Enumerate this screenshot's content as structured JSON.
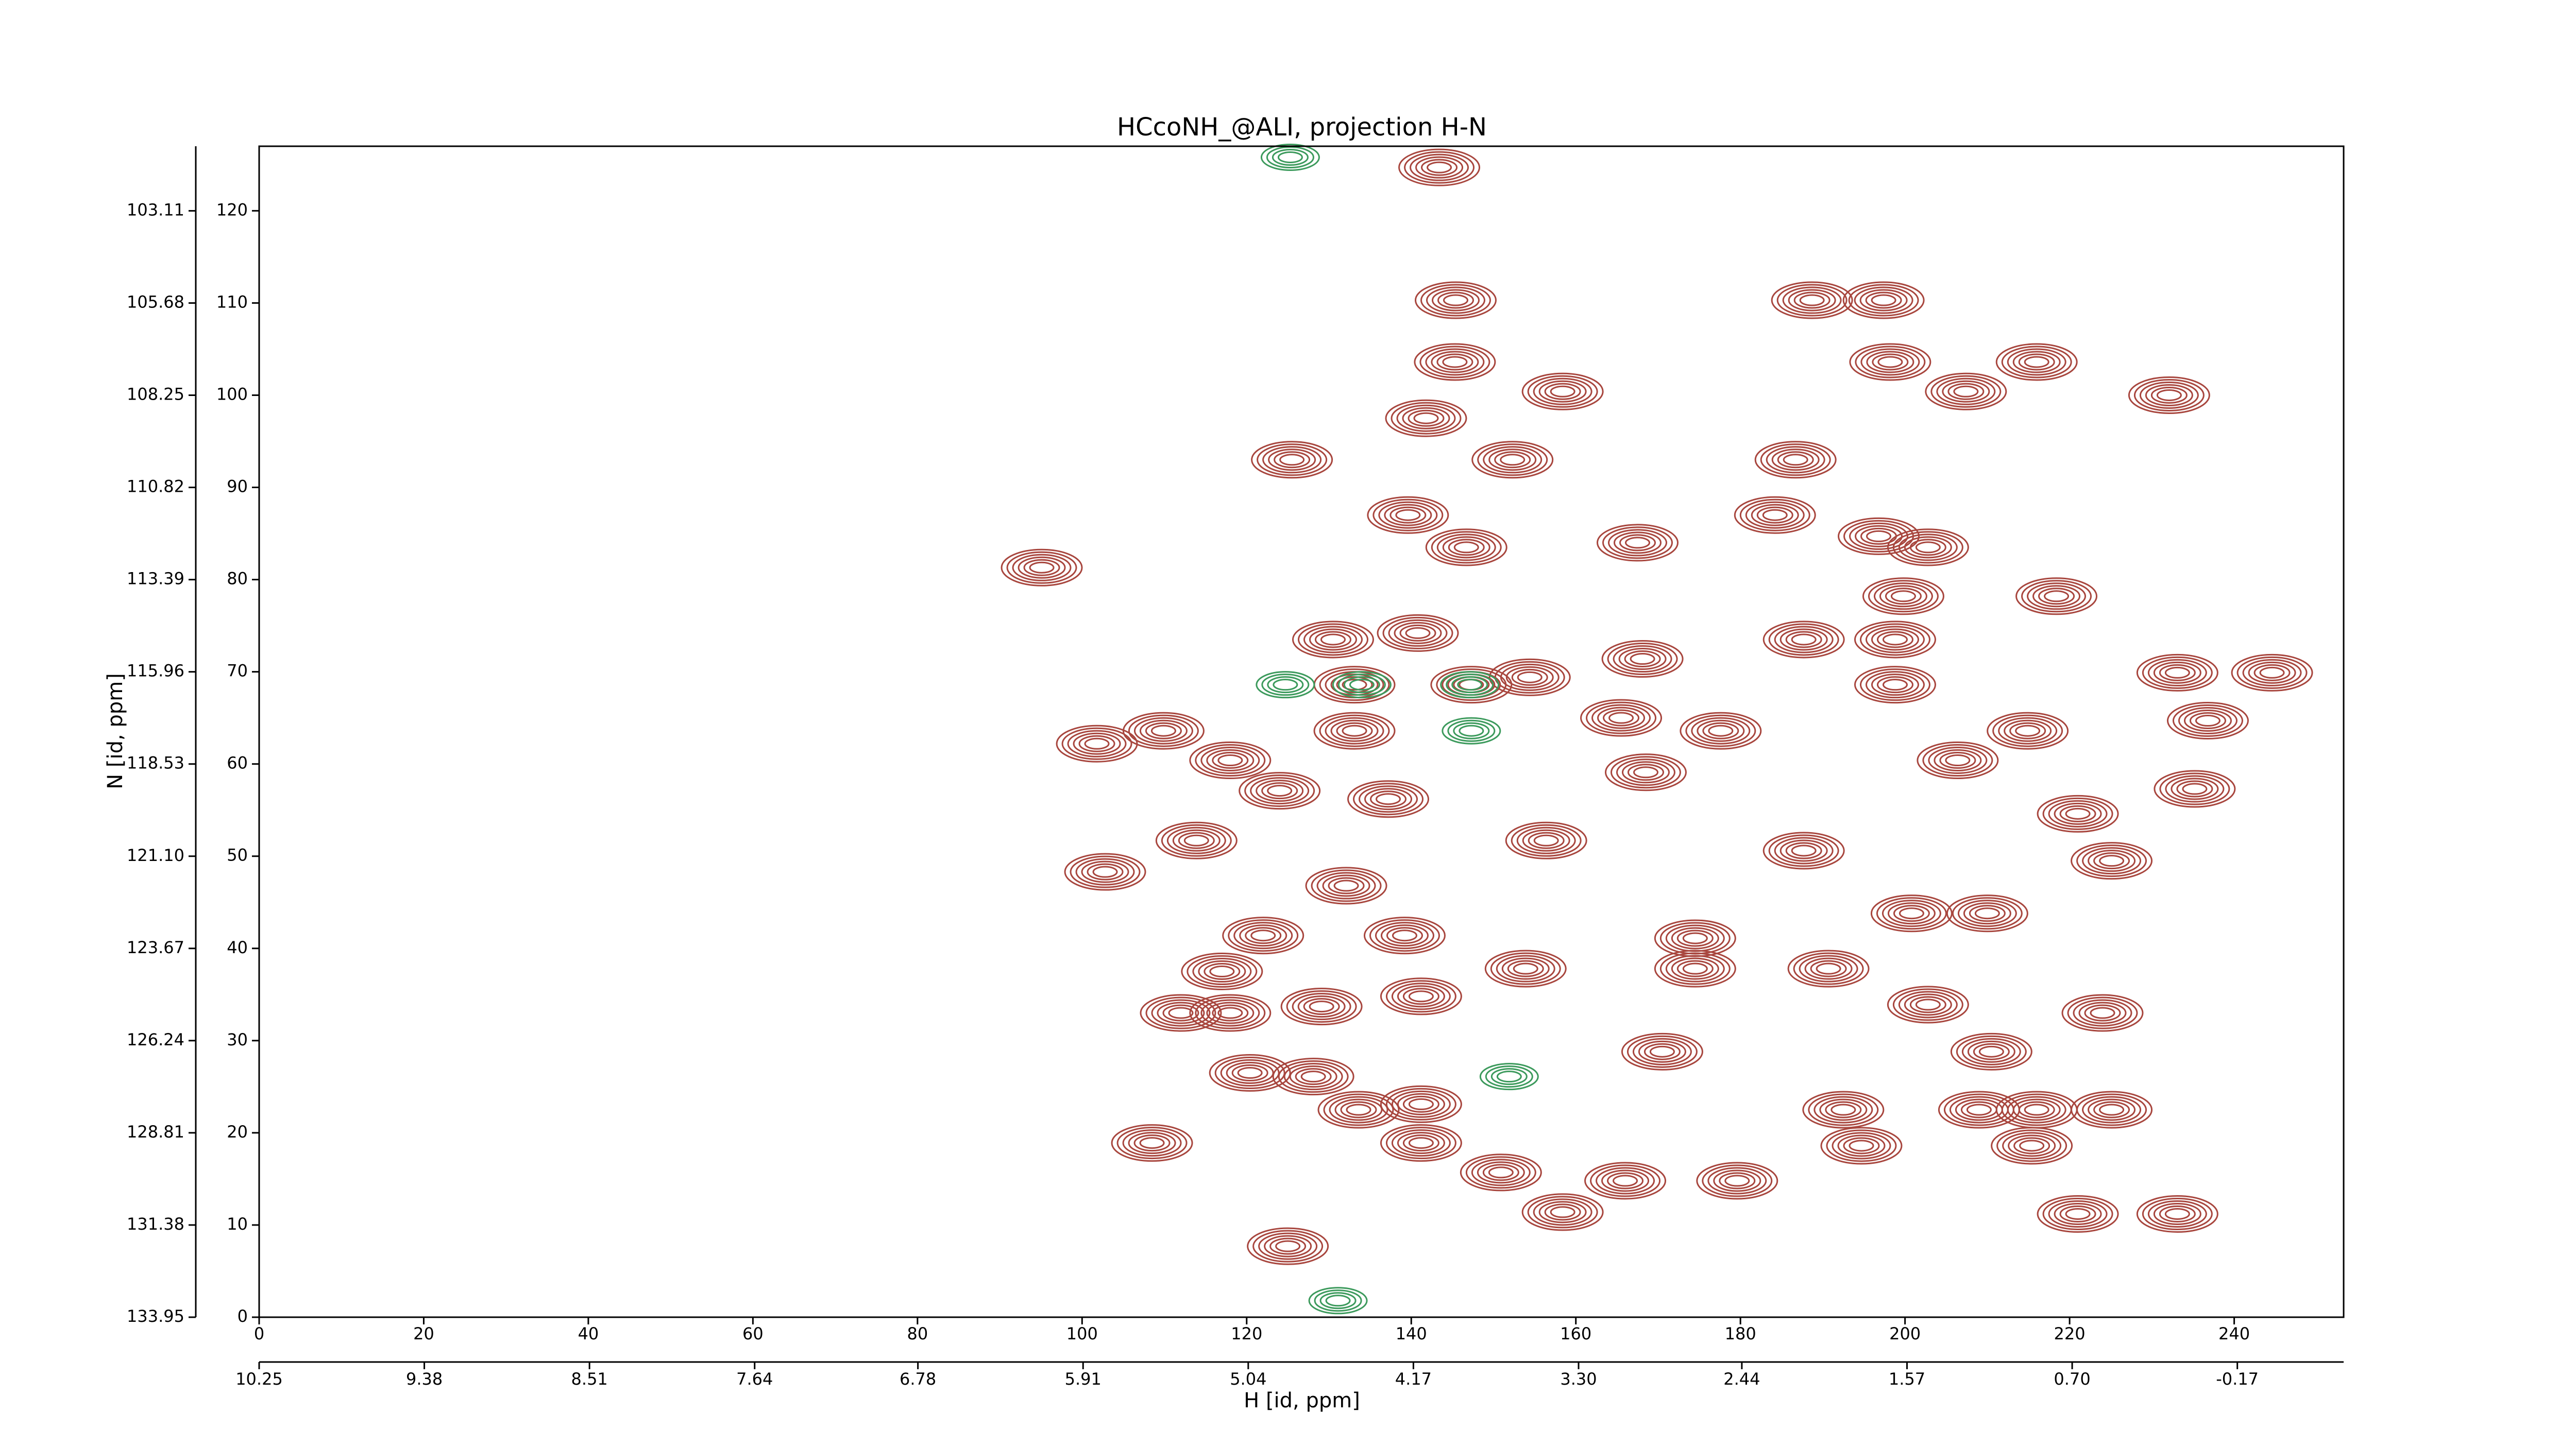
{
  "chart_data": {
    "type": "contour",
    "title": "HCcoNH_@ALI, projection H-N",
    "x_label": "H [id, ppm]",
    "y_label": "N [id, ppm]",
    "xlim": [
      0,
      253.3
    ],
    "xticks": [
      0,
      20,
      40,
      60,
      80,
      100,
      120,
      140,
      160,
      180,
      200,
      220,
      240
    ],
    "ylim": [
      0,
      127
    ],
    "yticks": [
      0,
      10,
      20,
      30,
      40,
      50,
      60,
      70,
      80,
      90,
      100,
      110,
      120
    ],
    "x2lim": [
      10.25,
      -0.73
    ],
    "x2ticks": [
      10.25,
      9.38,
      8.51,
      7.64,
      6.78,
      5.91,
      5.04,
      4.17,
      {
        "value": 3.3,
        "label": "3.30"
      },
      2.44,
      1.57,
      {
        "value": 0.7,
        "label": "0.70"
      },
      -0.17
    ],
    "y2lim": [
      133.95,
      101.31
    ],
    "y2ticks": [
      133.95,
      131.38,
      128.81,
      126.24,
      123.67,
      {
        "value": 121.1,
        "label": "121.10"
      },
      118.53,
      115.96,
      113.39,
      110.82,
      108.25,
      105.68,
      103.11
    ],
    "series": [
      {
        "color": "#a8463e",
        "x": [
          143.4,
          145.4,
          188.7,
          197.4,
          145.3,
          198.2,
          216,
          158.4,
          232.1,
          207.4,
          141.8,
          152.3,
          186.7,
          125.5,
          184.2,
          139.6,
          167.5,
          196.8,
          146.7,
          202.8,
          95.1,
          199.8,
          218.4,
          130.5,
          140.8,
          187.7,
          198.8,
          133.1,
          147.3,
          154.4,
          168.1,
          198.8,
          233.1,
          244.6,
          133.1,
          165.5,
          177.6,
          214.9,
          101.8,
          109.9,
          236.8,
          118,
          124,
          168.5,
          206.4,
          235.2,
          113.9,
          137.2,
          156.4,
          187.7,
          225.1,
          102.8,
          221,
          132.1,
          122,
          139.2,
          174.5,
          200.8,
          210,
          117,
          153.9,
          174.5,
          190.7,
          141.2,
          129.1,
          112,
          118,
          202.8,
          224,
          170.5,
          210.5,
          120.4,
          128.1,
          141.2,
          192.5,
          209,
          216,
          225.1,
          133.6,
          108.5,
          141.2,
          215.4,
          194.7,
          150.9,
          166,
          233.1,
          158.4,
          221,
          179.6,
          125
        ],
        "y": [
          124.7,
          110.3,
          110.3,
          110.3,
          103.6,
          103.6,
          103.6,
          100.4,
          100,
          100.4,
          97.5,
          93,
          93,
          93,
          87,
          87,
          84,
          84.7,
          83.5,
          83.5,
          81.3,
          78.2,
          78.2,
          73.5,
          74.2,
          73.5,
          73.5,
          68.6,
          68.6,
          69.4,
          71.4,
          68.6,
          69.9,
          69.9,
          63.6,
          65,
          63.6,
          63.6,
          62.2,
          63.6,
          64.7,
          60.4,
          57.1,
          59.1,
          60.4,
          57.3,
          51.7,
          56.2,
          51.7,
          50.6,
          49.5,
          48.3,
          54.6,
          46.8,
          41.4,
          41.4,
          41.1,
          43.8,
          43.8,
          37.5,
          37.8,
          37.8,
          37.8,
          34.8,
          33.7,
          33,
          33,
          33.9,
          33,
          28.8,
          28.8,
          26.5,
          26.1,
          23.1,
          22.5,
          22.5,
          22.5,
          22.5,
          22.5,
          18.9,
          18.9,
          18.6,
          18.6,
          15.7,
          14.8,
          11.2,
          11.4,
          11.2,
          14.8,
          7.7
        ]
      },
      {
        "color": "#3c9a5c",
        "x": [
          147.1,
          134,
          124.7,
          147.3,
          151.9,
          125.3,
          131.1
        ],
        "y": [
          68.6,
          68.6,
          68.6,
          63.6,
          26.1,
          125.8,
          1.8
        ]
      }
    ]
  }
}
